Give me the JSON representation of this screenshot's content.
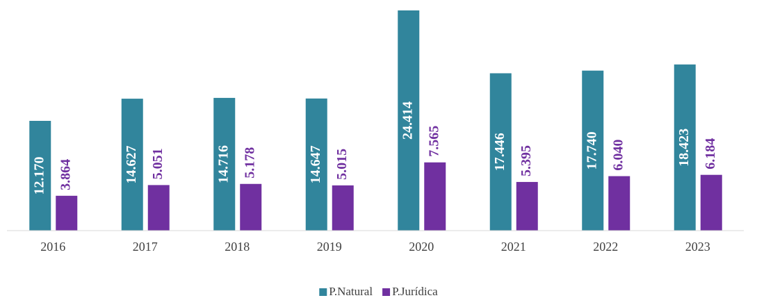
{
  "chart_data": {
    "type": "bar",
    "categories": [
      "2016",
      "2017",
      "2018",
      "2019",
      "2020",
      "2021",
      "2022",
      "2023"
    ],
    "series": [
      {
        "name": "P.Natural",
        "color": "#31859c",
        "values": [
          12170,
          14627,
          14716,
          14647,
          24414,
          17446,
          17740,
          18423
        ],
        "value_labels": [
          "12.170",
          "14.627",
          "14.716",
          "14.647",
          "24.414",
          "17.446",
          "17.740",
          "18.423"
        ]
      },
      {
        "name": "P.Jurídica",
        "color": "#7030a0",
        "values": [
          3864,
          5051,
          5178,
          5015,
          7565,
          5395,
          6040,
          6184
        ],
        "value_labels": [
          "3.864",
          "5.051",
          "5.178",
          "5.015",
          "7.565",
          "5.395",
          "6.040",
          "6.184"
        ]
      }
    ],
    "ylim": [
      0,
      24414
    ],
    "legend": "bottom"
  }
}
